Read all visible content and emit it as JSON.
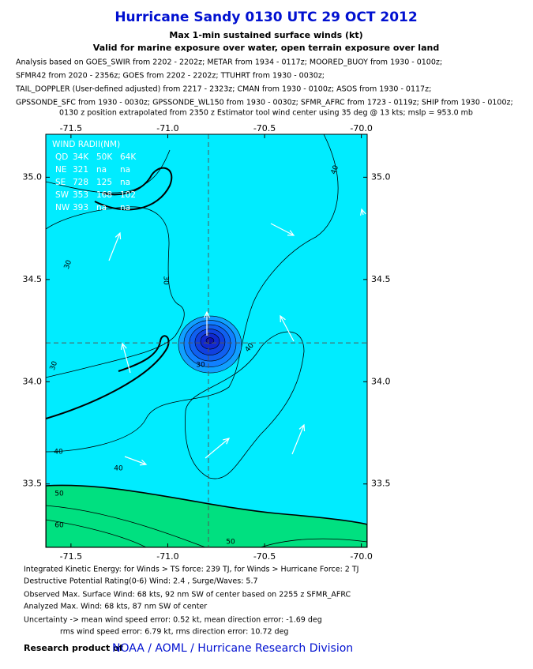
{
  "header": {
    "title": "Hurricane Sandy 0130 UTC 29 OCT 2012",
    "subtitle": "Max 1-min sustained surface winds (kt)",
    "subtitle2": "Valid for marine exposure over water, open terrain exposure over land",
    "analysis": [
      "Analysis based on GOES_SWIR from 2202 - 2202z; METAR from 1934 - 0117z; MOORED_BUOY from 1930 - 0100z;",
      "SFMR42 from 2020 - 2356z; GOES from 2202 - 2202z; TTUHRT from 1930 - 0030z;",
      "TAIL_DOPPLER (User-defined adjusted) from 2217 - 2323z; CMAN from 1930 - 0100z; ASOS from 1930 - 0117z;",
      "GPSSONDE_SFC from 1930 - 0030z; GPSSONDE_WL150 from 1930 - 0030z; SFMR_AFRC from 1723 - 0119z; SHIP from 1930 - 0100z;"
    ],
    "position": "0130 z position extrapolated from 2350 z Estimator tool wind center using 35 deg @ 13 kts; mslp = 953.0 mb"
  },
  "map": {
    "xlim": [
      -71.63,
      -69.97
    ],
    "ylim": [
      33.19,
      35.21
    ],
    "xticks": [
      -71.5,
      {
        "value": -71,
        "label": "-71.0"
      },
      -70.5,
      {
        "value": -70,
        "label": "-70.0"
      }
    ],
    "yticks": [
      {
        "value": 35,
        "label": "35.0"
      },
      34.5,
      {
        "value": 34,
        "label": "34.0"
      },
      33.5
    ],
    "center": {
      "lon": -70.79,
      "lat": 34.19
    },
    "contour_labels": [
      30,
      30,
      30,
      30,
      40,
      40,
      40,
      40,
      50,
      60,
      50
    ],
    "wind_radii": {
      "title": "WIND RADII(NM)",
      "header": [
        "QD",
        "34K",
        "50K",
        "64K"
      ],
      "rows": [
        [
          "NE",
          321,
          "na",
          "na"
        ],
        [
          "SE",
          728,
          125,
          "na"
        ],
        [
          "SW",
          353,
          168,
          102
        ],
        [
          "NW",
          393,
          "na",
          "na"
        ]
      ]
    }
  },
  "footer": {
    "lines": [
      "Integrated Kinetic Energy: for Winds > TS force: 239 TJ, for Winds > Hurricane Force: 2 TJ",
      "Destructive Potential Rating(0-6)  Wind: 2.4 , Surge/Waves: 5.7",
      "Observed Max. Surface Wind: 68 kts, 92 nm SW of center based on 2255 z SFMR_AFRC",
      "Analyzed Max. Wind: 68 kts, 87 nm  SW of center",
      "Uncertainty -> mean wind speed error: 0.52 kt, mean direction error:  -1.69 deg",
      "rms wind speed error: 6.79 kt, rms direction error: 10.72 deg"
    ],
    "credit": "Research product of",
    "link": "NOAA / AOML / Hurricane Research Division"
  }
}
